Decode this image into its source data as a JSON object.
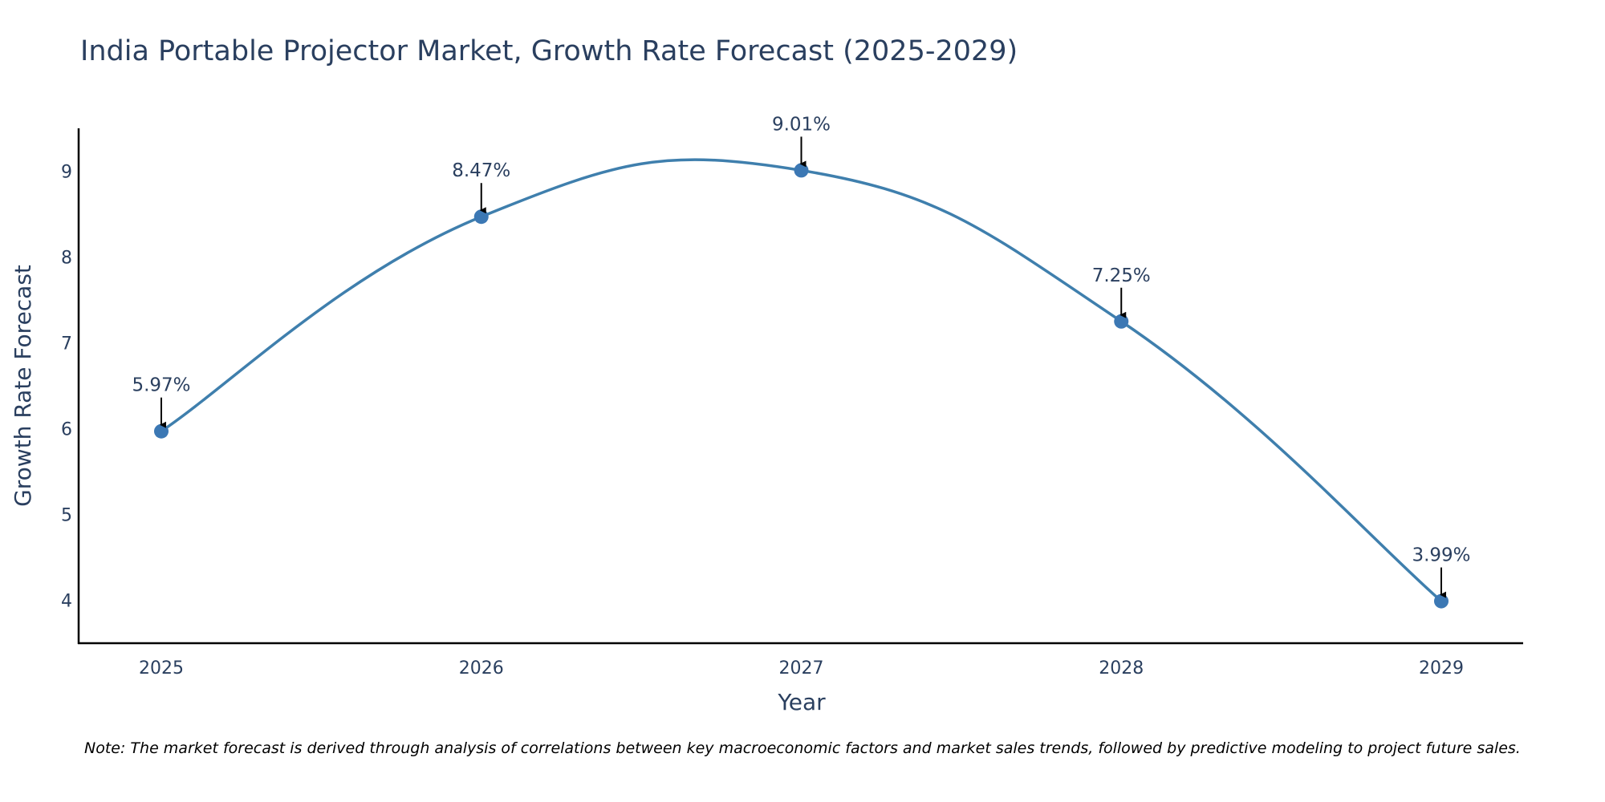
{
  "chart_data": {
    "type": "line",
    "title": "India Portable Projector Market, Growth Rate Forecast (2025-2029)",
    "xlabel": "Year",
    "ylabel": "Growth Rate Forecast",
    "categories": [
      "2025",
      "2026",
      "2027",
      "2028",
      "2029"
    ],
    "values": [
      5.97,
      8.47,
      9.01,
      7.25,
      3.99
    ],
    "data_labels": [
      "5.97%",
      "8.47%",
      "9.01%",
      "7.25%",
      "3.99%"
    ],
    "y_ticks": [
      "4",
      "5",
      "6",
      "7",
      "8",
      "9"
    ],
    "ylim": [
      3.5,
      9.5
    ],
    "line_shape": "spline",
    "grid": false,
    "line_color": "#3f7fad",
    "marker_color": "#3c78b4"
  },
  "note": "Note: The market forecast is derived through analysis of correlations between key macroeconomic factors and market sales trends, followed by predictive modeling to project future sales."
}
